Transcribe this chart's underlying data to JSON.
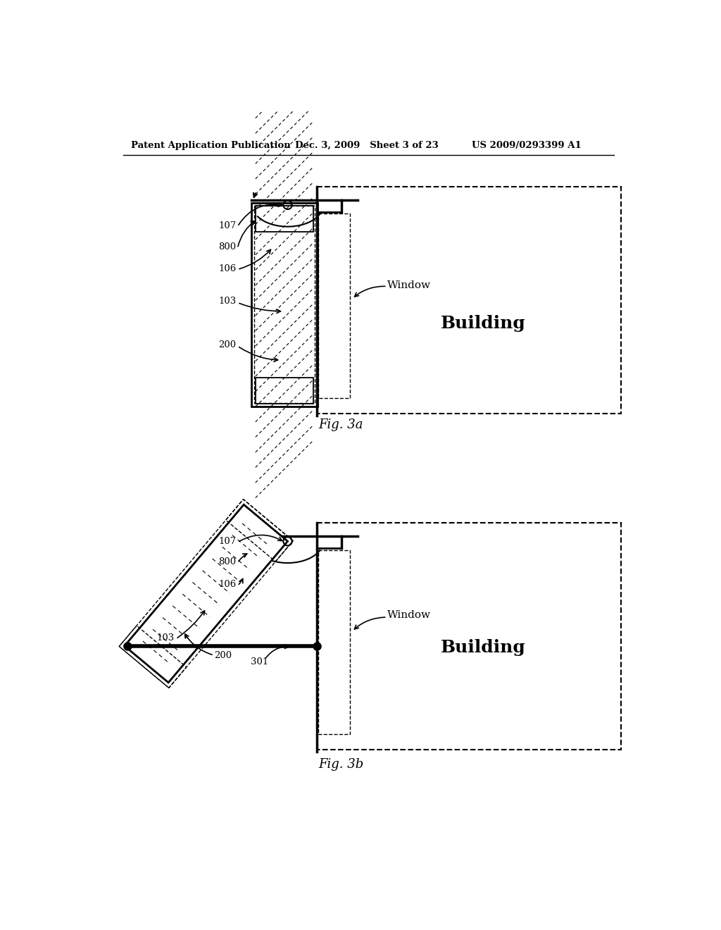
{
  "bg_color": "#ffffff",
  "header_left": "Patent Application Publication",
  "header_mid": "Dec. 3, 2009   Sheet 3 of 23",
  "header_right": "US 2009/0293399 A1",
  "fig3a_caption": "Fig. 3a",
  "fig3b_caption": "Fig. 3b",
  "building_label": "Building",
  "window_label": "Window"
}
